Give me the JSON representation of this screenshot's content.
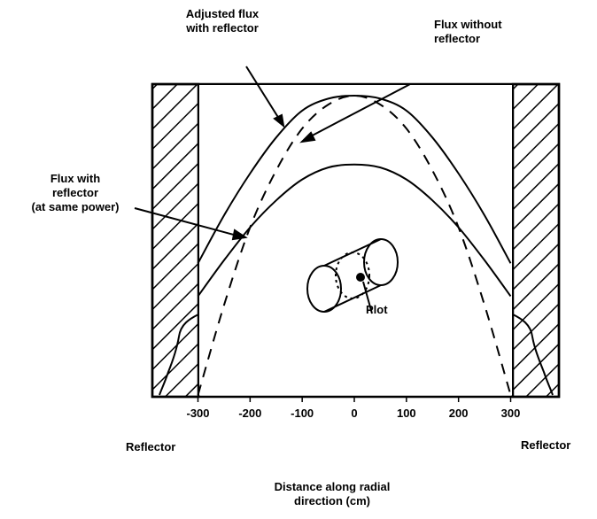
{
  "annotations": {
    "adjusted_flux": [
      "Adjusted flux",
      "with reflector"
    ],
    "flux_without": [
      "Flux without",
      "reflector"
    ],
    "flux_with": [
      "Flux with",
      "reflector",
      "(at same power)"
    ],
    "plot": "Plot"
  },
  "reflector_left": "Reflector",
  "reflector_right": "Reflector",
  "xaxis_label": [
    "Distance along radial",
    "direction (cm)"
  ],
  "chart_data": {
    "type": "line",
    "xlabel": "Distance along radial direction (cm)",
    "xlim": [
      -370,
      370
    ],
    "x_ticks": [
      -300,
      -200,
      -100,
      0,
      100,
      200,
      300
    ],
    "x_tick_labels": [
      "-300",
      "-200",
      "-100",
      "0",
      "100",
      "200",
      "300"
    ],
    "core_edges": [
      -300,
      300
    ],
    "series": [
      {
        "name": "Adjusted flux with reflector",
        "style": "solid",
        "x": [
          -300,
          -250,
          -200,
          -150,
          -100,
          -50,
          0,
          50,
          100,
          150,
          200,
          250,
          300
        ],
        "y": [
          0.44,
          0.6,
          0.74,
          0.86,
          0.95,
          0.99,
          1.0,
          0.99,
          0.95,
          0.86,
          0.74,
          0.6,
          0.44
        ]
      },
      {
        "name": "Flux without reflector",
        "style": "dashed",
        "x": [
          -300,
          -250,
          -200,
          -150,
          -100,
          -50,
          0,
          50,
          100,
          150,
          200,
          250,
          300
        ],
        "y": [
          0.0,
          0.3,
          0.56,
          0.75,
          0.89,
          0.97,
          1.0,
          0.97,
          0.89,
          0.75,
          0.56,
          0.3,
          0.0
        ]
      },
      {
        "name": "Flux with reflector (at same power)",
        "style": "solid",
        "x": [
          -300,
          -250,
          -200,
          -150,
          -100,
          -50,
          0,
          50,
          100,
          150,
          200,
          250,
          300
        ],
        "y": [
          0.33,
          0.45,
          0.56,
          0.65,
          0.72,
          0.76,
          0.77,
          0.76,
          0.72,
          0.65,
          0.56,
          0.45,
          0.33
        ]
      }
    ]
  }
}
